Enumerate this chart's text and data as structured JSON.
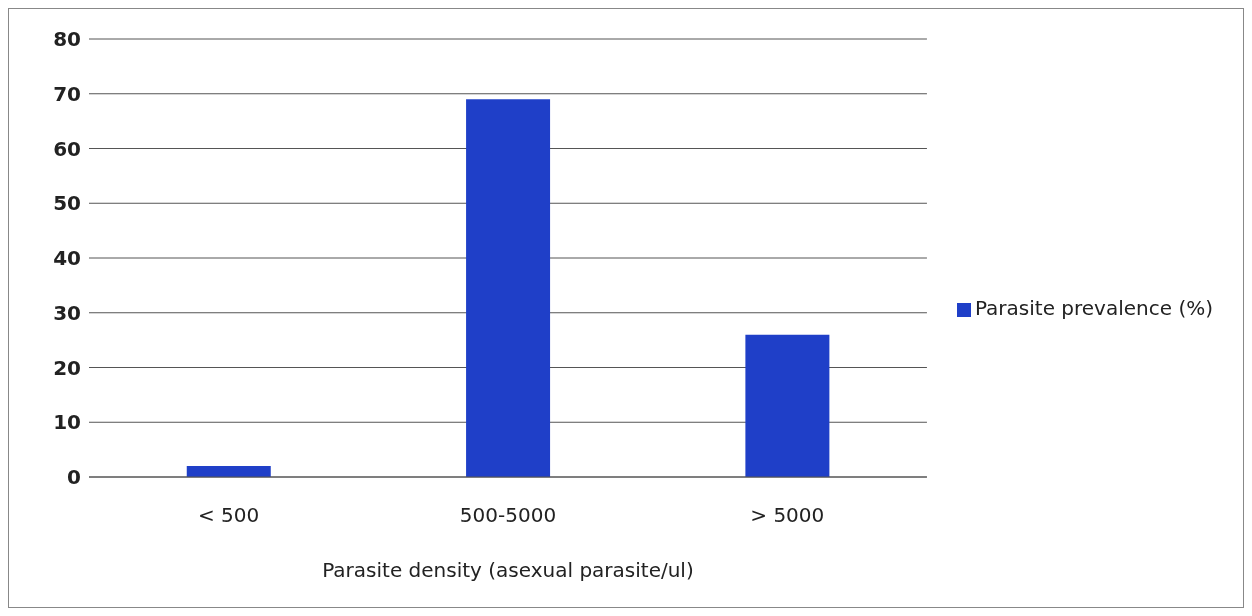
{
  "chart_data": {
    "type": "bar",
    "xlabel": "Parasite density (asexual parasite/ul)",
    "categories": [
      "< 500",
      "500-5000",
      "> 5000"
    ],
    "series": [
      {
        "name": "Parasite prevalence (%)",
        "color": "#1f3fc8",
        "values": [
          2,
          69,
          26
        ]
      }
    ],
    "ylim": [
      0,
      80
    ],
    "yticks": [
      0,
      10,
      20,
      30,
      40,
      50,
      60,
      70,
      80
    ],
    "grid": "y",
    "legend": "right"
  }
}
